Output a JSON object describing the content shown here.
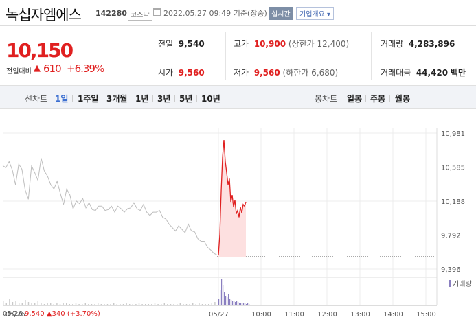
{
  "header": {
    "stock_name": "녹십자엠에스",
    "code": "142280",
    "market": "코스닥",
    "datetime": "2022.05.27 09:49",
    "basis": "기준(장중)",
    "realtime": "실시간",
    "corp_overview": "기업개요 ▾"
  },
  "price": {
    "current": "10,150",
    "change_label": "전일대비",
    "change_arrow": "▲",
    "change_value": "610",
    "change_pct": "+6.39%"
  },
  "stats": {
    "prev_close_label": "전일",
    "prev_close": "9,540",
    "high_label": "고가",
    "high": "10,900",
    "upper_limit": "(상한가 12,400)",
    "volume_label": "거래량",
    "volume": "4,283,896",
    "open_label": "시가",
    "open": "9,560",
    "low_label": "저가",
    "low": "9,560",
    "lower_limit": "(하한가 6,680)",
    "amount_label": "거래대금",
    "amount": "44,420",
    "amount_unit": "백만"
  },
  "toolbar": {
    "line_label": "선차트",
    "periods": [
      "1일",
      "1주일",
      "3개월",
      "1년",
      "3년",
      "5년",
      "10년"
    ],
    "active_period": "1일",
    "candle_label": "봉차트",
    "candles": [
      "일봉",
      "주봉",
      "월봉"
    ]
  },
  "chart_data": {
    "type": "line",
    "y_ticks": [
      "10,981",
      "10,585",
      "10,188",
      "9,792",
      "9,396"
    ],
    "ylim": [
      9396,
      10981
    ],
    "x_ticks": [
      "05/26",
      "05/27",
      "10:00",
      "11:00",
      "12:00",
      "13:00",
      "14:00",
      "15:00"
    ],
    "volume_legend": "거래량",
    "prev_close": 9540,
    "series": [
      {
        "values_prev_day": [
          10600,
          10580,
          10650,
          10550,
          10380,
          10620,
          10560,
          10320,
          10210,
          10600,
          10520,
          10430,
          10690,
          10540,
          10480,
          10380,
          10330,
          10420,
          10280,
          10150,
          10330,
          10260,
          10100,
          10190,
          10160,
          10220,
          10110,
          10170,
          10090,
          10080,
          10130,
          10130,
          10080,
          10090,
          10130,
          10060,
          10130,
          10100,
          10060,
          10100,
          10110,
          10170,
          10100,
          10080,
          10150,
          10060,
          10020,
          10060,
          10060,
          10080,
          10000,
          9980,
          9920,
          9880,
          9840,
          9900,
          9860,
          9820,
          9920,
          9840,
          9830,
          9750,
          9720,
          9720,
          9650,
          9620,
          9580,
          9560
        ]
      },
      {
        "values_today": [
          9560,
          9800,
          10300,
          10700,
          10900,
          10650,
          10520,
          10380,
          10450,
          10180,
          10260,
          10120,
          10200,
          10040,
          10080,
          10000,
          10120,
          10050,
          10150,
          10130,
          10180
        ]
      }
    ]
  },
  "footer": {
    "date": "05/26",
    "close": "9,540",
    "arrow": "▲",
    "change": "340",
    "pct": "(+3.70%)"
  },
  "colors": {
    "up": "#e02020",
    "accent": "#3c6fd1"
  }
}
